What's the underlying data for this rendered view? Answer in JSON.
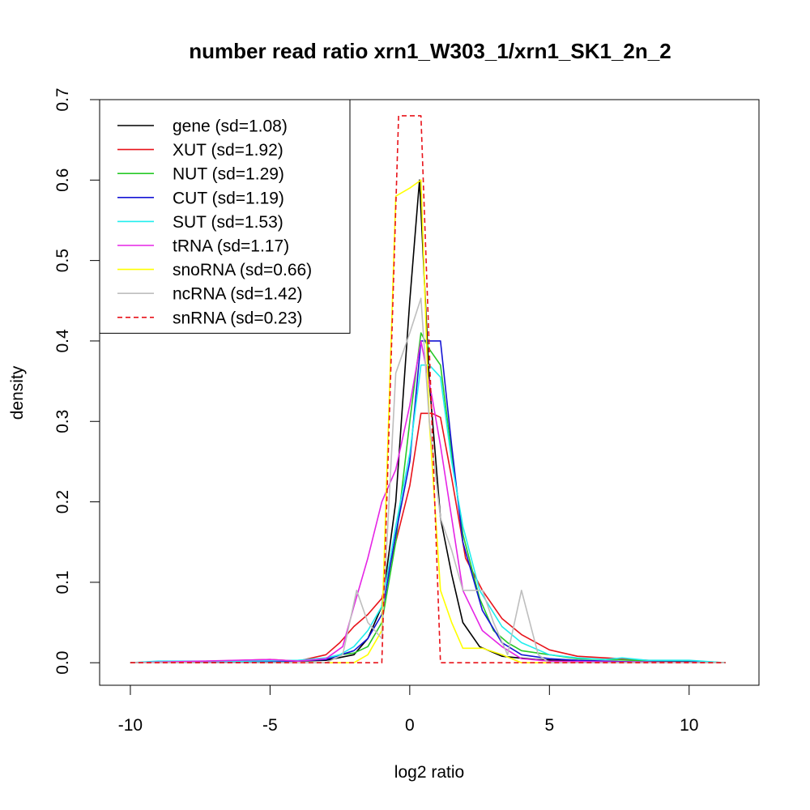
{
  "chart_data": {
    "type": "line",
    "title": "number read ratio xrn1_W303_1/xrn1_SK1_2n_2",
    "xlabel": "log2 ratio",
    "ylabel": "density",
    "xlim": [
      -11.1,
      12.5
    ],
    "ylim": [
      -0.028,
      0.7
    ],
    "xticks": [
      -10,
      -5,
      0,
      5,
      10
    ],
    "yticks": [
      0.0,
      0.1,
      0.2,
      0.3,
      0.4,
      0.5,
      0.6,
      0.7
    ],
    "xtick_labels": [
      "-10",
      "-5",
      "0",
      "5",
      "10"
    ],
    "ytick_labels": [
      "0.0",
      "0.1",
      "0.2",
      "0.3",
      "0.4",
      "0.5",
      "0.6",
      "0.7"
    ],
    "grid": false,
    "legend_position": "top-left",
    "series": [
      {
        "name": "gene (sd=1.08)",
        "color": "#000000",
        "dash": "solid",
        "points": [
          [
            -10,
            0
          ],
          [
            -8,
            0.001
          ],
          [
            -6,
            0.001
          ],
          [
            -5,
            0.002
          ],
          [
            -4,
            0.002
          ],
          [
            -3,
            0.003
          ],
          [
            -2,
            0.01
          ],
          [
            -1.5,
            0.03
          ],
          [
            -1,
            0.07
          ],
          [
            -0.5,
            0.2
          ],
          [
            0,
            0.45
          ],
          [
            0.35,
            0.6
          ],
          [
            0.7,
            0.35
          ],
          [
            1.1,
            0.18
          ],
          [
            1.5,
            0.11
          ],
          [
            1.9,
            0.05
          ],
          [
            2.5,
            0.02
          ],
          [
            3.3,
            0.008
          ],
          [
            4.5,
            0.004
          ],
          [
            6,
            0.002
          ],
          [
            8,
            0.001
          ],
          [
            10,
            0.001
          ],
          [
            11.3,
            0
          ]
        ]
      },
      {
        "name": "XUT (sd=1.92)",
        "color": "#e8131a",
        "dash": "solid",
        "points": [
          [
            -10,
            0
          ],
          [
            -7,
            0.002
          ],
          [
            -5,
            0.004
          ],
          [
            -4,
            0.002
          ],
          [
            -3,
            0.01
          ],
          [
            -2.5,
            0.025
          ],
          [
            -2,
            0.045
          ],
          [
            -1.5,
            0.06
          ],
          [
            -1,
            0.08
          ],
          [
            -0.5,
            0.15
          ],
          [
            0,
            0.22
          ],
          [
            0.4,
            0.31
          ],
          [
            0.8,
            0.31
          ],
          [
            1.1,
            0.305
          ],
          [
            1.5,
            0.23
          ],
          [
            2,
            0.13
          ],
          [
            2.6,
            0.09
          ],
          [
            3.3,
            0.055
          ],
          [
            4,
            0.035
          ],
          [
            5,
            0.016
          ],
          [
            6,
            0.008
          ],
          [
            7,
            0.006
          ],
          [
            8,
            0.004
          ],
          [
            9,
            0.002
          ],
          [
            10,
            0.002
          ],
          [
            11.3,
            0
          ]
        ]
      },
      {
        "name": "NUT (sd=1.29)",
        "color": "#27c927",
        "dash": "solid",
        "points": [
          [
            -10,
            0
          ],
          [
            -6,
            0.001
          ],
          [
            -4,
            0.002
          ],
          [
            -3,
            0.005
          ],
          [
            -2.5,
            0.01
          ],
          [
            -2,
            0.012
          ],
          [
            -1.5,
            0.02
          ],
          [
            -1,
            0.05
          ],
          [
            -0.5,
            0.15
          ],
          [
            0,
            0.3
          ],
          [
            0.4,
            0.41
          ],
          [
            0.7,
            0.39
          ],
          [
            1.1,
            0.37
          ],
          [
            1.5,
            0.26
          ],
          [
            1.9,
            0.16
          ],
          [
            2.5,
            0.08
          ],
          [
            3,
            0.04
          ],
          [
            3.5,
            0.025
          ],
          [
            4,
            0.015
          ],
          [
            5,
            0.01
          ],
          [
            6,
            0.005
          ],
          [
            8,
            0.003
          ],
          [
            10,
            0.002
          ],
          [
            11.3,
            0
          ]
        ]
      },
      {
        "name": "CUT (sd=1.19)",
        "color": "#1414d4",
        "dash": "solid",
        "points": [
          [
            -10,
            0
          ],
          [
            -6,
            0.001
          ],
          [
            -4,
            0.002
          ],
          [
            -3,
            0.004
          ],
          [
            -2,
            0.015
          ],
          [
            -1.5,
            0.03
          ],
          [
            -1,
            0.06
          ],
          [
            -0.5,
            0.16
          ],
          [
            0,
            0.25
          ],
          [
            0.4,
            0.4
          ],
          [
            0.7,
            0.4
          ],
          [
            1.1,
            0.4
          ],
          [
            1.5,
            0.27
          ],
          [
            1.9,
            0.15
          ],
          [
            2.6,
            0.065
          ],
          [
            3.3,
            0.025
          ],
          [
            4,
            0.01
          ],
          [
            5,
            0.005
          ],
          [
            6,
            0.003
          ],
          [
            8,
            0.001
          ],
          [
            10,
            0.001
          ],
          [
            11.3,
            0
          ]
        ]
      },
      {
        "name": "SUT (sd=1.53)",
        "color": "#20eeee",
        "dash": "solid",
        "points": [
          [
            -10,
            0
          ],
          [
            -9,
            0.002
          ],
          [
            -6,
            0.002
          ],
          [
            -4,
            0.003
          ],
          [
            -3,
            0.006
          ],
          [
            -2.5,
            0.01
          ],
          [
            -2,
            0.02
          ],
          [
            -1.5,
            0.04
          ],
          [
            -1,
            0.07
          ],
          [
            -0.5,
            0.17
          ],
          [
            0,
            0.26
          ],
          [
            0.4,
            0.37
          ],
          [
            0.7,
            0.37
          ],
          [
            1.1,
            0.355
          ],
          [
            1.5,
            0.25
          ],
          [
            1.9,
            0.17
          ],
          [
            2.5,
            0.09
          ],
          [
            3.3,
            0.045
          ],
          [
            4,
            0.025
          ],
          [
            5,
            0.01
          ],
          [
            6,
            0.006
          ],
          [
            7,
            0.004
          ],
          [
            7.6,
            0.006
          ],
          [
            8.5,
            0.003
          ],
          [
            10,
            0.003
          ],
          [
            11.3,
            0
          ]
        ]
      },
      {
        "name": "tRNA (sd=1.17)",
        "color": "#e525e5",
        "dash": "solid",
        "points": [
          [
            -10,
            0
          ],
          [
            -5,
            0.004
          ],
          [
            -4,
            0.002
          ],
          [
            -3,
            0.005
          ],
          [
            -2.4,
            0.02
          ],
          [
            -2,
            0.07
          ],
          [
            -1.5,
            0.13
          ],
          [
            -1,
            0.2
          ],
          [
            -0.5,
            0.24
          ],
          [
            0,
            0.32
          ],
          [
            0.4,
            0.4
          ],
          [
            0.8,
            0.33
          ],
          [
            1.1,
            0.27
          ],
          [
            1.5,
            0.18
          ],
          [
            1.9,
            0.09
          ],
          [
            2.6,
            0.04
          ],
          [
            3.3,
            0.02
          ],
          [
            4,
            0.005
          ],
          [
            5,
            0.002
          ],
          [
            7,
            0.001
          ],
          [
            11.3,
            0
          ]
        ]
      },
      {
        "name": "snoRNA (sd=0.66)",
        "color": "#ffff00",
        "dash": "solid",
        "points": [
          [
            -10,
            0
          ],
          [
            -2,
            0
          ],
          [
            -1.5,
            0.01
          ],
          [
            -1,
            0.04
          ],
          [
            -0.5,
            0.58
          ],
          [
            0,
            0.59
          ],
          [
            0.4,
            0.6
          ],
          [
            0.7,
            0.3
          ],
          [
            1.1,
            0.09
          ],
          [
            1.5,
            0.05
          ],
          [
            1.9,
            0.018
          ],
          [
            2.6,
            0.018
          ],
          [
            3.3,
            0.01
          ],
          [
            4,
            0
          ],
          [
            11.3,
            0
          ]
        ]
      },
      {
        "name": "ncRNA (sd=1.42)",
        "color": "#bebebe",
        "dash": "solid",
        "points": [
          [
            -10,
            0
          ],
          [
            -3,
            0
          ],
          [
            -2.4,
            0.01
          ],
          [
            -1.9,
            0.09
          ],
          [
            -1.5,
            0.05
          ],
          [
            -1,
            0.03
          ],
          [
            -0.5,
            0.36
          ],
          [
            0,
            0.41
          ],
          [
            0.4,
            0.453
          ],
          [
            0.7,
            0.3
          ],
          [
            1.1,
            0.18
          ],
          [
            1.5,
            0.14
          ],
          [
            1.9,
            0.09
          ],
          [
            2.6,
            0.09
          ],
          [
            3,
            0.05
          ],
          [
            3.5,
            0.01
          ],
          [
            4,
            0.09
          ],
          [
            4.6,
            0.01
          ],
          [
            5,
            0
          ],
          [
            11.3,
            0
          ]
        ]
      },
      {
        "name": "snRNA (sd=0.23)",
        "color": "#e8131a",
        "dash": "dashed",
        "points": [
          [
            -10,
            0
          ],
          [
            -1,
            0
          ],
          [
            -0.4,
            0.68
          ],
          [
            0.4,
            0.68
          ],
          [
            1.1,
            0
          ],
          [
            11.3,
            0
          ]
        ]
      }
    ]
  }
}
